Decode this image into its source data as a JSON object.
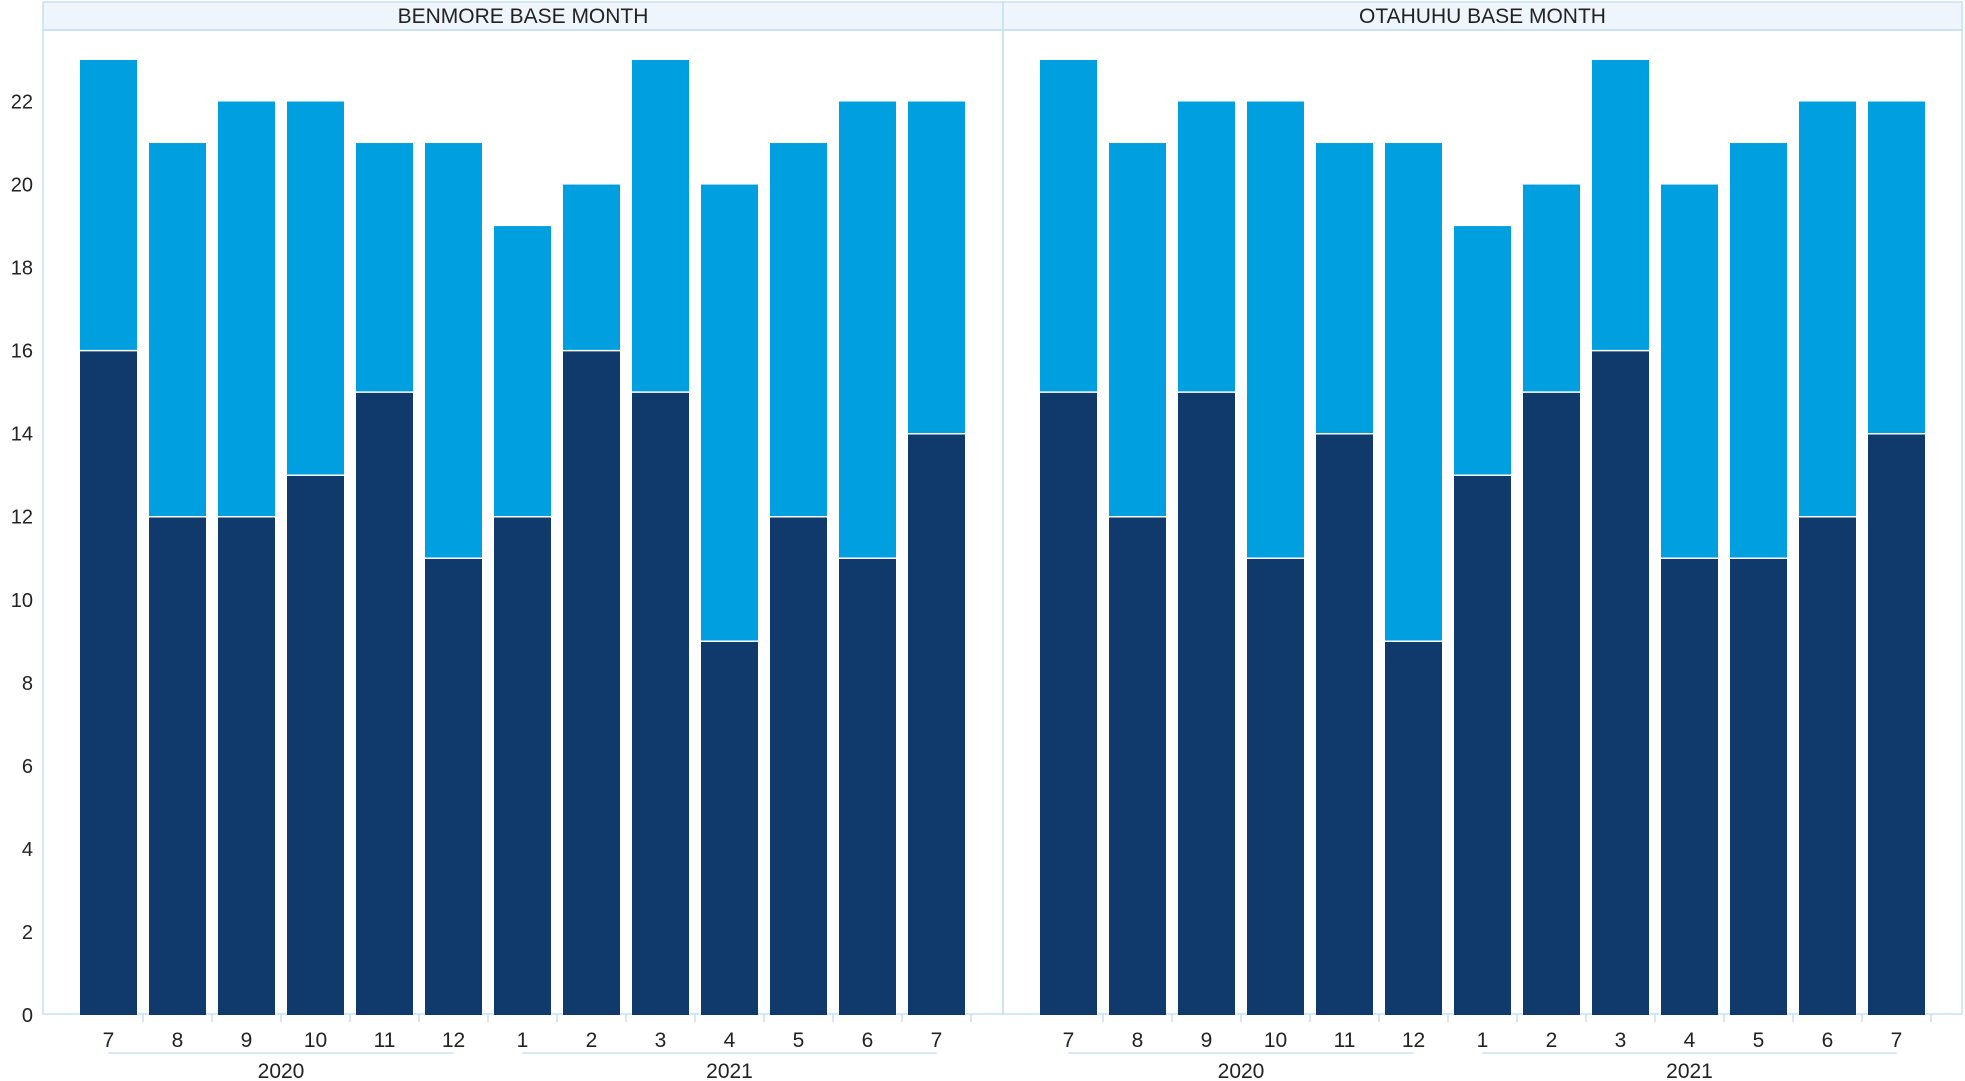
{
  "chart_data": {
    "type": "bar",
    "stacked": true,
    "grid": false,
    "ylim": [
      0,
      23
    ],
    "yticks": [
      0,
      2,
      4,
      6,
      8,
      10,
      12,
      14,
      16,
      18,
      20,
      22
    ],
    "categories": [
      "7",
      "8",
      "9",
      "10",
      "11",
      "12",
      "1",
      "2",
      "3",
      "4",
      "5",
      "6",
      "7"
    ],
    "year_groups": [
      {
        "label": "2020",
        "start": 0,
        "end": 5
      },
      {
        "label": "2021",
        "start": 6,
        "end": 12
      }
    ],
    "colors": {
      "bottom": "#0f3a6b",
      "top": "#009fe0",
      "panel_border": "#c8dff2",
      "header_bg": "#eef5fc"
    },
    "panels": [
      {
        "title": "BENMORE BASE MONTH",
        "series": [
          {
            "values": [
              16,
              12,
              12,
              13,
              15,
              11,
              12,
              16,
              15,
              9,
              12,
              11,
              14
            ]
          },
          {
            "values": [
              7,
              9,
              10,
              9,
              6,
              10,
              7,
              4,
              8,
              11,
              9,
              11,
              8
            ]
          }
        ],
        "totals": [
          23,
          21,
          22,
          22,
          21,
          21,
          19,
          20,
          23,
          20,
          21,
          22,
          22
        ]
      },
      {
        "title": "OTAHUHU BASE MONTH",
        "series": [
          {
            "values": [
              15,
              12,
              15,
              11,
              14,
              9,
              13,
              15,
              16,
              11,
              11,
              12,
              14
            ]
          },
          {
            "values": [
              8,
              9,
              7,
              11,
              7,
              12,
              6,
              5,
              7,
              9,
              10,
              10,
              8
            ]
          }
        ],
        "totals": [
          23,
          21,
          22,
          22,
          21,
          21,
          19,
          20,
          23,
          20,
          21,
          22,
          22
        ]
      }
    ]
  }
}
